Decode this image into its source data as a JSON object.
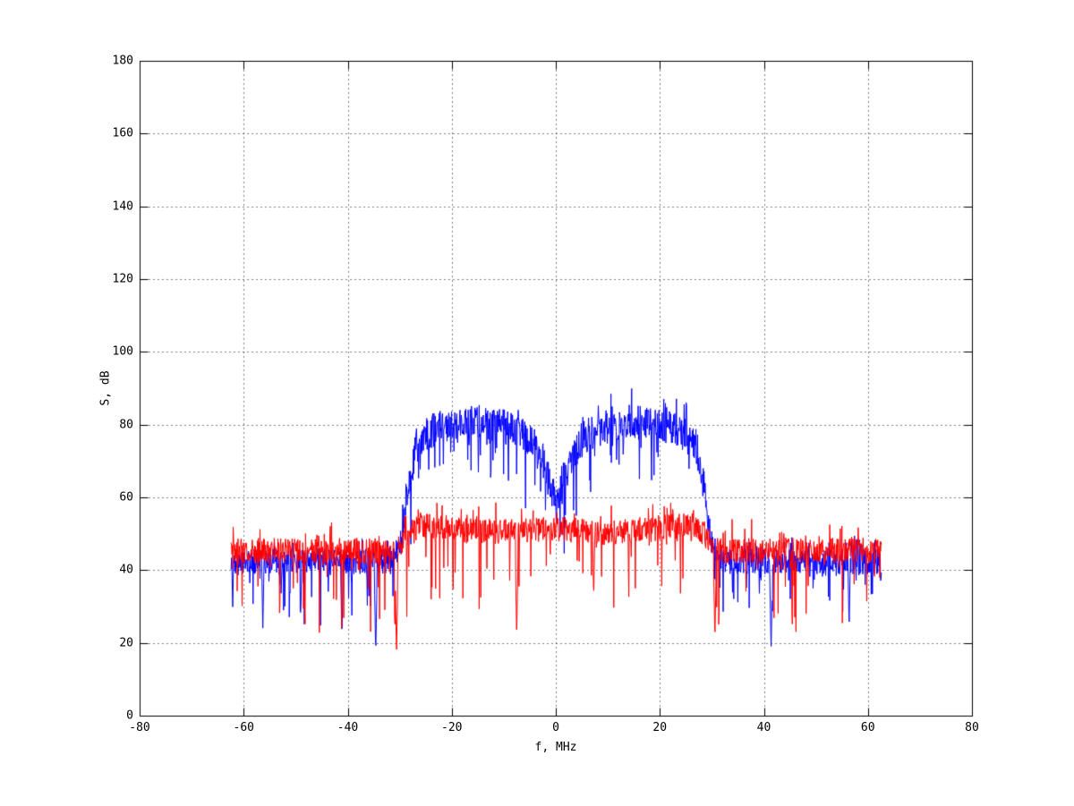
{
  "chart_data": {
    "type": "line",
    "title": "",
    "xlabel": "f, MHz",
    "ylabel": "S, dB",
    "xlim": [
      -80,
      80
    ],
    "ylim": [
      0,
      180
    ],
    "xticks": [
      -80,
      -60,
      -40,
      -20,
      0,
      20,
      40,
      60,
      80
    ],
    "yticks": [
      0,
      20,
      40,
      60,
      80,
      100,
      120,
      140,
      160,
      180
    ],
    "grid": "dotted",
    "legend": "none",
    "background": "#ffffff",
    "axis_color": "#000000",
    "series": [
      {
        "name": "signal-spectrum-blue",
        "color": "#0000ff",
        "f_span": [
          -62.5,
          62.5
        ],
        "points": 1600,
        "seed": 1337,
        "description": "Signal spectrum: noise floor ~42 dB outside the band, occupied band from -30 to +30 MHz with plateau ~80 dB (peaks to ~89 dB) and a V-shaped notch at 0 MHz down to ~52 dB",
        "mean_breakpoints": [
          [
            -62.5,
            42.5
          ],
          [
            -33,
            42.5
          ],
          [
            -30,
            46
          ],
          [
            -28.5,
            62
          ],
          [
            -27,
            74
          ],
          [
            -25,
            78
          ],
          [
            -20,
            80
          ],
          [
            -15,
            81
          ],
          [
            -8,
            79
          ],
          [
            -5,
            76
          ],
          [
            -2.5,
            70
          ],
          [
            -0.8,
            62
          ],
          [
            0,
            58
          ],
          [
            0.8,
            62
          ],
          [
            2.5,
            70
          ],
          [
            5,
            76
          ],
          [
            8,
            79
          ],
          [
            15,
            81
          ],
          [
            20,
            80
          ],
          [
            25,
            78
          ],
          [
            27,
            74
          ],
          [
            28.5,
            62
          ],
          [
            30,
            46
          ],
          [
            33,
            42.5
          ],
          [
            62.5,
            42.5
          ]
        ],
        "sigma_breakpoints": [
          [
            -62.5,
            3.5
          ],
          [
            -31,
            3.5
          ],
          [
            -28,
            4.8
          ],
          [
            0,
            5.0
          ],
          [
            28,
            4.8
          ],
          [
            31,
            3.5
          ],
          [
            62.5,
            3.5
          ]
        ],
        "down_spikes": {
          "prob": 0.14,
          "max_depth": 17
        },
        "up_spikes": {
          "prob": 0.09,
          "max_amp": 6.5
        },
        "notches": [
          [
            -62.2,
            29
          ],
          [
            -56.4,
            24
          ],
          [
            -41.2,
            21
          ],
          [
            -34.7,
            17
          ],
          [
            0,
            52
          ],
          [
            41.3,
            18
          ],
          [
            56.3,
            24
          ]
        ]
      },
      {
        "name": "noise-spectrum-red",
        "color": "#ff0000",
        "f_span": [
          -62.5,
          62.5
        ],
        "points": 1600,
        "seed": 2024,
        "description": "Reference/noise spectrum: ~46 dB floor across the span, slightly elevated to ~52 dB inside the -30..+30 MHz band, sporadic deep downward spikes to ~17-32 dB",
        "mean_breakpoints": [
          [
            -62.5,
            45.5
          ],
          [
            -32,
            45.5
          ],
          [
            -29,
            49
          ],
          [
            -26,
            52.5
          ],
          [
            -22,
            52
          ],
          [
            -10,
            50.5
          ],
          [
            0,
            51.5
          ],
          [
            10,
            50.5
          ],
          [
            22,
            52
          ],
          [
            26,
            52.5
          ],
          [
            29,
            49
          ],
          [
            32,
            45.5
          ],
          [
            62.5,
            45.5
          ]
        ],
        "sigma_breakpoints": [
          [
            -62.5,
            3.5
          ],
          [
            62.5,
            3.5
          ]
        ],
        "down_spikes": {
          "prob": 0.12,
          "max_depth": 22
        },
        "up_spikes": {
          "prob": 0.09,
          "max_amp": 6
        },
        "notches": [
          [
            -30.7,
            17
          ],
          [
            -7.6,
            22
          ],
          [
            7.2,
            32
          ],
          [
            30.5,
            21
          ]
        ]
      }
    ]
  }
}
